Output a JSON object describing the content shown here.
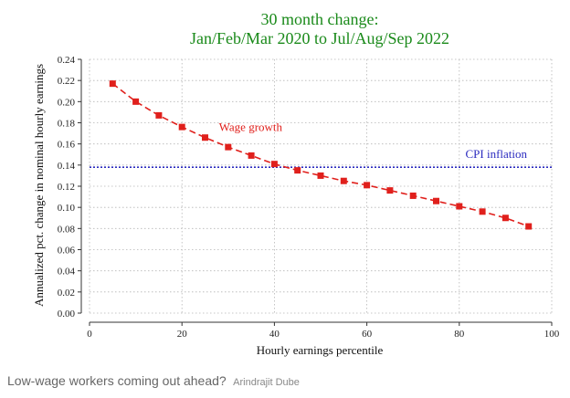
{
  "chart_data": {
    "type": "line",
    "title": [
      "30 month change:",
      "Jan/Feb/Mar 2020 to Jul/Aug/Sep 2022"
    ],
    "xlabel": "Hourly earnings percentile",
    "ylabel": "Annualized pct. change in nominal hourly earnings",
    "xlim": [
      0,
      100
    ],
    "ylim": [
      0,
      0.24
    ],
    "xticks": [
      0,
      20,
      40,
      60,
      80,
      100
    ],
    "yticks": [
      0.0,
      0.02,
      0.04,
      0.06,
      0.08,
      0.1,
      0.12,
      0.14,
      0.16,
      0.18,
      0.2,
      0.22,
      0.24
    ],
    "ytick_labels": [
      "0.00",
      "0.02",
      "0.04",
      "0.06",
      "0.08",
      "0.10",
      "0.12",
      "0.14",
      "0.16",
      "0.18",
      "0.20",
      "0.22",
      "0.24"
    ],
    "grid": true,
    "series": [
      {
        "name": "Wage growth",
        "color": "#e0201c",
        "style": "dashed",
        "marker": "square",
        "x": [
          5,
          10,
          15,
          20,
          25,
          30,
          35,
          40,
          45,
          50,
          55,
          60,
          65,
          70,
          75,
          80,
          85,
          90,
          95
        ],
        "y": [
          0.217,
          0.2,
          0.187,
          0.176,
          0.166,
          0.157,
          0.149,
          0.141,
          0.135,
          0.13,
          0.125,
          0.121,
          0.116,
          0.111,
          0.106,
          0.101,
          0.096,
          0.09,
          0.082
        ]
      }
    ],
    "reference_lines": [
      {
        "name": "CPI inflation",
        "y": 0.138,
        "color": "#2b2bbf",
        "style": "dotted"
      }
    ]
  },
  "caption": {
    "text": "Low-wage workers coming out ahead?",
    "author": "Arindrajit Dube"
  }
}
